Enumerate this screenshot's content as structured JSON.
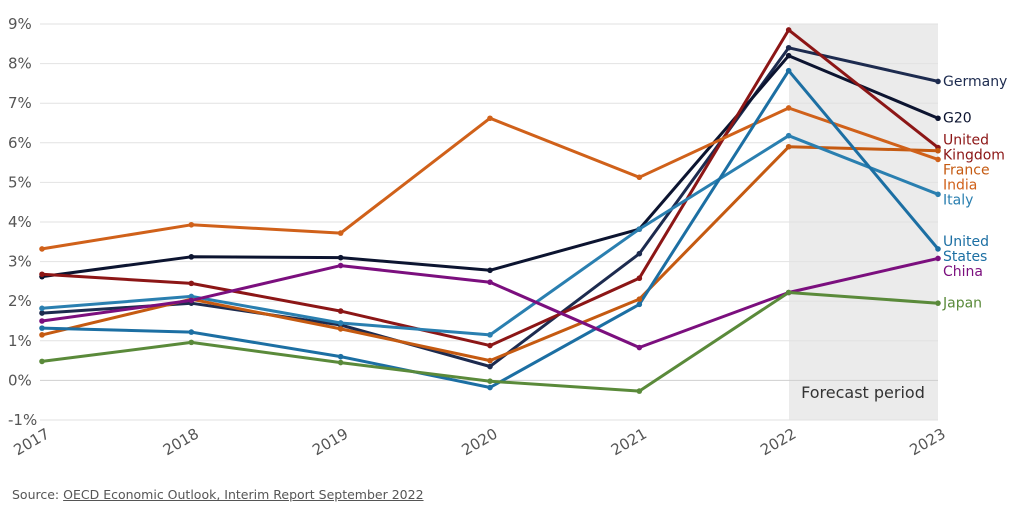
{
  "chart_data": {
    "type": "line",
    "forecast_label": "Forecast period",
    "forecast_range": [
      "2022",
      "2023"
    ],
    "x": [
      "2017",
      "2018",
      "2019",
      "2020",
      "2021",
      "2022",
      "2023"
    ],
    "y_ticks": [
      "9%",
      "8%",
      "7%",
      "6%",
      "5%",
      "4%",
      "3%",
      "2%",
      "1%",
      "0%",
      "-1%"
    ],
    "ylim": [
      -1,
      9
    ],
    "grid": "horizontal",
    "series": [
      {
        "name": "Germany",
        "label_lines": [
          "Germany"
        ],
        "color": "#1d2b4f",
        "values": [
          1.7,
          1.95,
          1.4,
          0.35,
          3.2,
          8.4,
          7.55
        ]
      },
      {
        "name": "G20",
        "label_lines": [
          "G20"
        ],
        "color": "#0c1430",
        "values": [
          2.62,
          3.12,
          3.1,
          2.78,
          3.82,
          8.2,
          6.62
        ]
      },
      {
        "name": "United Kingdom",
        "label_lines": [
          "United",
          "Kingdom"
        ],
        "color": "#8c1616",
        "values": [
          2.68,
          2.45,
          1.75,
          0.88,
          2.58,
          8.85,
          5.88
        ]
      },
      {
        "name": "France",
        "label_lines": [
          "France"
        ],
        "color": "#c55a11",
        "values": [
          1.15,
          2.05,
          1.3,
          0.5,
          2.05,
          5.9,
          5.8
        ]
      },
      {
        "name": "India",
        "label_lines": [
          "India"
        ],
        "color": "#d0611a",
        "values": [
          3.32,
          3.93,
          3.72,
          6.62,
          5.13,
          6.88,
          5.58
        ]
      },
      {
        "name": "Italy",
        "label_lines": [
          "Italy"
        ],
        "color": "#2a7fb0",
        "values": [
          1.82,
          2.12,
          1.45,
          1.15,
          3.82,
          6.18,
          4.7
        ]
      },
      {
        "name": "United States",
        "label_lines": [
          "United",
          "States"
        ],
        "color": "#1c6fa3",
        "values": [
          1.32,
          1.22,
          0.6,
          -0.18,
          1.92,
          7.82,
          3.32
        ]
      },
      {
        "name": "China",
        "label_lines": [
          "China"
        ],
        "color": "#7b0f7e",
        "values": [
          1.5,
          2.02,
          2.9,
          2.48,
          0.83,
          2.22,
          3.08
        ]
      },
      {
        "name": "Japan",
        "label_lines": [
          "Japan"
        ],
        "color": "#5a8a3a",
        "values": [
          0.48,
          0.96,
          0.45,
          -0.02,
          -0.27,
          2.22,
          1.95
        ]
      }
    ]
  },
  "source": {
    "prefix": "Source: ",
    "link_text": "OECD Economic Outlook, Interim Report September 2022"
  }
}
